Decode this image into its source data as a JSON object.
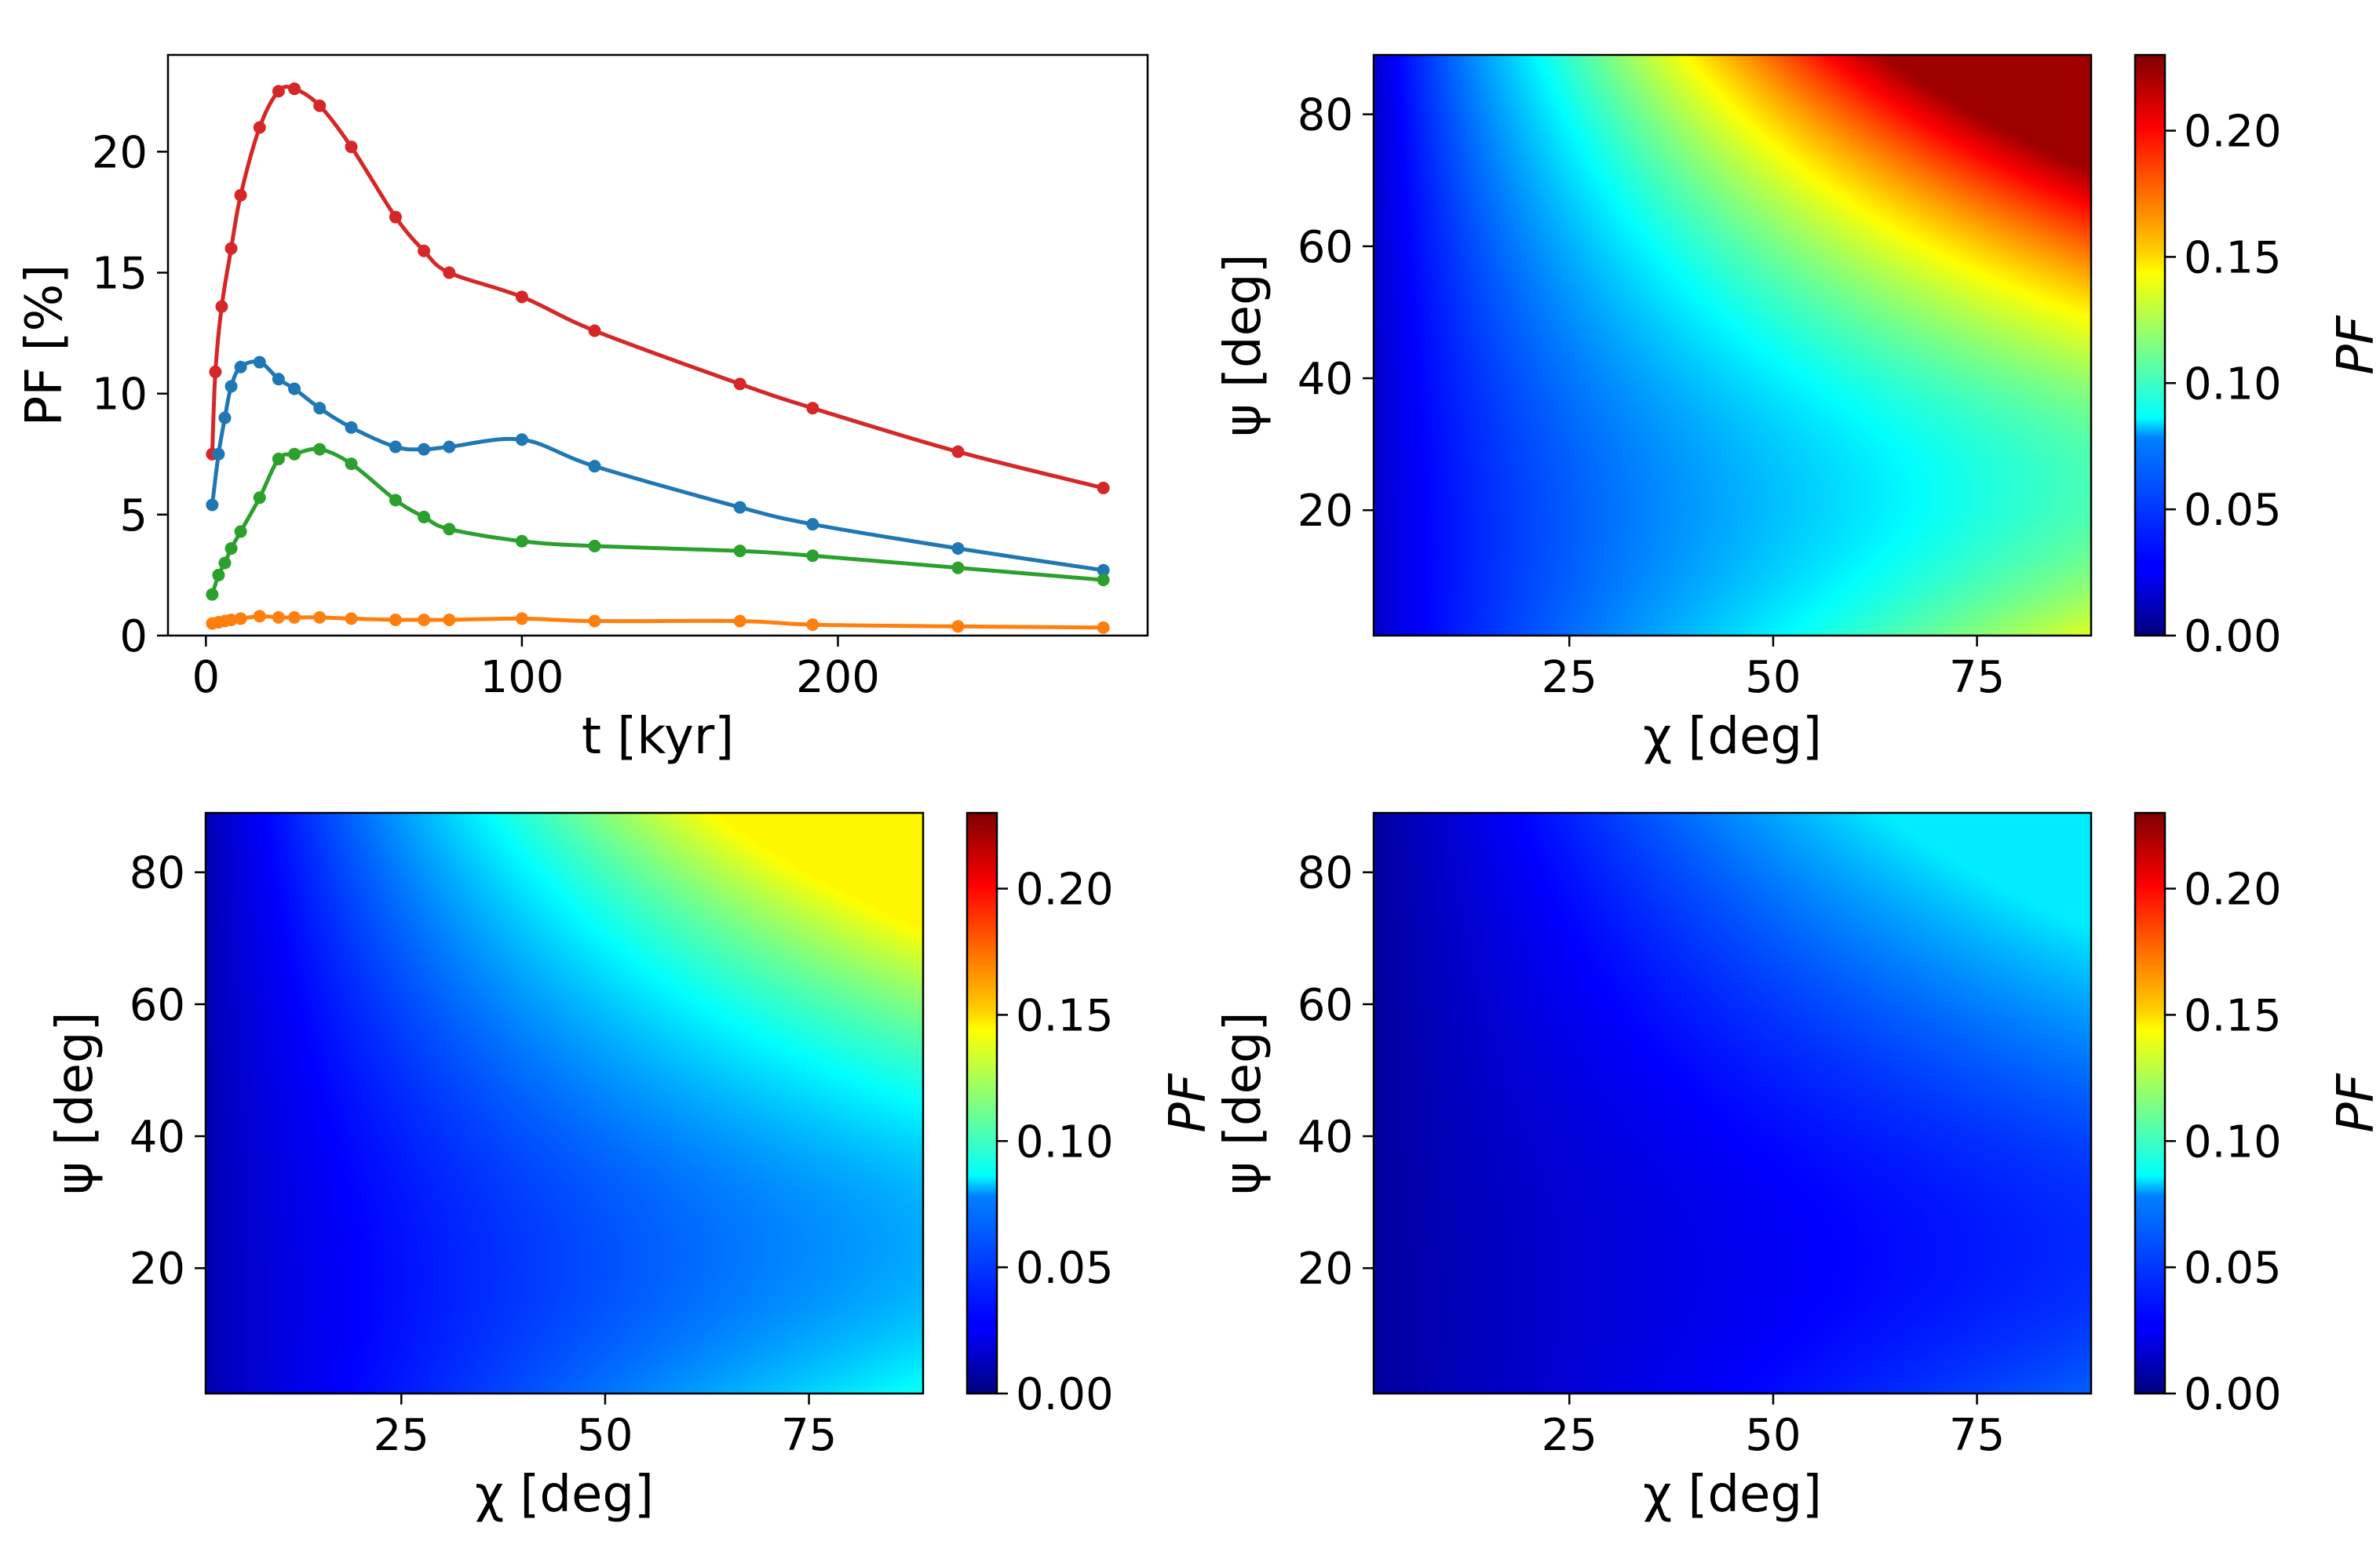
{
  "chart_data": [
    {
      "type": "line",
      "panel": "top-left",
      "xlabel": "t [kyr]",
      "ylabel": "PF [%]",
      "xlim": [
        -12,
        298
      ],
      "ylim": [
        0,
        24
      ],
      "xticks": [
        0,
        100,
        200
      ],
      "yticks": [
        0,
        5,
        10,
        15,
        20
      ],
      "series": [
        {
          "name": "red",
          "color": "#d62728",
          "points": [
            [
              2,
              7.5
            ],
            [
              3,
              10.9
            ],
            [
              5,
              13.6
            ],
            [
              8,
              16.0
            ],
            [
              11,
              18.2
            ],
            [
              17,
              21.0
            ],
            [
              23,
              22.5
            ],
            [
              28,
              22.6
            ],
            [
              36,
              21.9
            ],
            [
              46,
              20.2
            ],
            [
              60,
              17.3
            ],
            [
              69,
              15.9
            ],
            [
              77,
              15.0
            ],
            [
              100,
              14.0
            ],
            [
              123,
              12.6
            ],
            [
              169,
              10.4
            ],
            [
              192,
              9.4
            ],
            [
              238,
              7.6
            ],
            [
              284,
              6.1
            ]
          ]
        },
        {
          "name": "blue",
          "color": "#1f77b4",
          "points": [
            [
              2,
              5.4
            ],
            [
              4,
              7.5
            ],
            [
              6,
              9.0
            ],
            [
              8,
              10.3
            ],
            [
              11,
              11.1
            ],
            [
              17,
              11.3
            ],
            [
              23,
              10.6
            ],
            [
              28,
              10.2
            ],
            [
              36,
              9.4
            ],
            [
              46,
              8.6
            ],
            [
              60,
              7.8
            ],
            [
              69,
              7.7
            ],
            [
              77,
              7.8
            ],
            [
              100,
              8.1
            ],
            [
              123,
              7.0
            ],
            [
              169,
              5.3
            ],
            [
              192,
              4.6
            ],
            [
              238,
              3.6
            ],
            [
              284,
              2.7
            ]
          ]
        },
        {
          "name": "green",
          "color": "#2ca02c",
          "points": [
            [
              2,
              1.7
            ],
            [
              4,
              2.5
            ],
            [
              6,
              3.0
            ],
            [
              8,
              3.6
            ],
            [
              11,
              4.3
            ],
            [
              17,
              5.7
            ],
            [
              23,
              7.3
            ],
            [
              28,
              7.5
            ],
            [
              36,
              7.7
            ],
            [
              46,
              7.1
            ],
            [
              60,
              5.6
            ],
            [
              69,
              4.9
            ],
            [
              77,
              4.4
            ],
            [
              100,
              3.9
            ],
            [
              123,
              3.7
            ],
            [
              169,
              3.5
            ],
            [
              192,
              3.3
            ],
            [
              238,
              2.8
            ],
            [
              284,
              2.3
            ]
          ]
        },
        {
          "name": "orange",
          "color": "#ff7f0e",
          "points": [
            [
              2,
              0.5
            ],
            [
              4,
              0.55
            ],
            [
              6,
              0.6
            ],
            [
              8,
              0.65
            ],
            [
              11,
              0.7
            ],
            [
              17,
              0.8
            ],
            [
              23,
              0.75
            ],
            [
              28,
              0.75
            ],
            [
              36,
              0.75
            ],
            [
              46,
              0.7
            ],
            [
              60,
              0.65
            ],
            [
              69,
              0.65
            ],
            [
              77,
              0.65
            ],
            [
              100,
              0.7
            ],
            [
              123,
              0.6
            ],
            [
              169,
              0.6
            ],
            [
              192,
              0.45
            ],
            [
              238,
              0.38
            ],
            [
              284,
              0.33
            ]
          ]
        }
      ]
    },
    {
      "type": "heatmap",
      "panel": "top-right",
      "xlabel": "χ [deg]",
      "ylabel": "ψ [deg]",
      "xlim": [
        1,
        89
      ],
      "ylim": [
        1,
        89
      ],
      "xticks": [
        25,
        50,
        75
      ],
      "yticks": [
        20,
        40,
        60,
        80
      ],
      "colorbar_label": "PF",
      "colorbar_range": [
        0,
        0.23
      ],
      "colorbar_ticks": [
        "0.00",
        "0.05",
        "0.10",
        "0.15",
        "0.20"
      ],
      "colormap": "jet",
      "pf_max": 0.23,
      "pf_peak_corner": "top-right"
    },
    {
      "type": "heatmap",
      "panel": "bottom-left",
      "xlabel": "χ [deg]",
      "ylabel": "ψ [deg]",
      "xlim": [
        1,
        89
      ],
      "ylim": [
        1,
        89
      ],
      "xticks": [
        25,
        50,
        75
      ],
      "yticks": [
        20,
        40,
        60,
        80
      ],
      "colorbar_label": "PF",
      "colorbar_range": [
        0,
        0.23
      ],
      "colorbar_ticks": [
        "0.00",
        "0.05",
        "0.10",
        "0.15",
        "0.20"
      ],
      "colormap": "jet",
      "pf_max": 0.15,
      "pf_peak_corner": "top-right"
    },
    {
      "type": "heatmap",
      "panel": "bottom-right",
      "xlabel": "χ [deg]",
      "ylabel": "ψ [deg]",
      "xlim": [
        1,
        89
      ],
      "ylim": [
        1,
        89
      ],
      "xticks": [
        25,
        50,
        75
      ],
      "yticks": [
        20,
        40,
        60,
        80
      ],
      "colorbar_label": "PF",
      "colorbar_range": [
        0,
        0.23
      ],
      "colorbar_ticks": [
        "0.00",
        "0.05",
        "0.10",
        "0.15",
        "0.20"
      ],
      "colormap": "jet",
      "pf_max": 0.085,
      "pf_peak_corner": "top-right"
    }
  ]
}
